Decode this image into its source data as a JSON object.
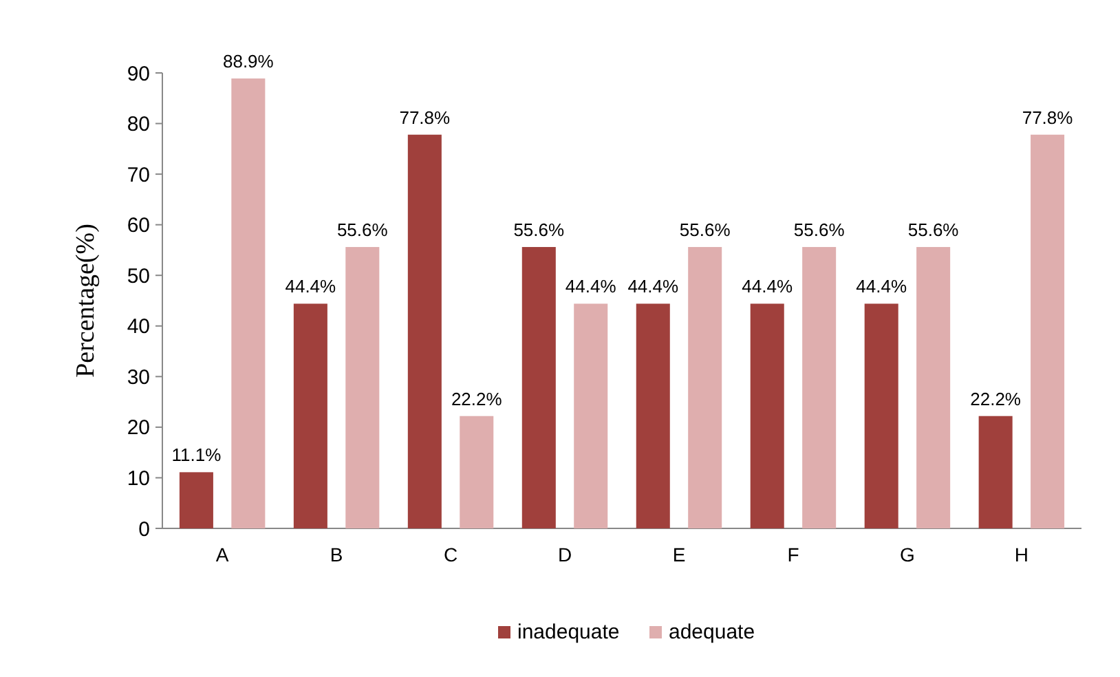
{
  "chart_data": {
    "type": "bar",
    "ylabel": "Percentage(%)",
    "categories": [
      "A",
      "B",
      "C",
      "D",
      "E",
      "F",
      "G",
      "H"
    ],
    "series": [
      {
        "name": "inadequate",
        "color": "#a0403c",
        "values": [
          11.1,
          44.4,
          77.8,
          55.6,
          44.4,
          44.4,
          44.4,
          22.2
        ],
        "value_labels": [
          "11.1%",
          "44.4%",
          "77.8%",
          "55.6%",
          "44.4%",
          "44.4%",
          "44.4%",
          "22.2%"
        ]
      },
      {
        "name": "adequate",
        "color": "#dfaeae",
        "values": [
          88.9,
          55.6,
          22.2,
          44.4,
          55.6,
          55.6,
          55.6,
          77.8
        ],
        "value_labels": [
          "88.9%",
          "55.6%",
          "22.2%",
          "44.4%",
          "55.6%",
          "55.6%",
          "55.6%",
          "77.8%"
        ]
      }
    ],
    "ylim": [
      0,
      90
    ],
    "yticks": [
      0,
      10,
      20,
      30,
      40,
      50,
      60,
      70,
      80,
      90
    ],
    "grid": false,
    "legend": "bottom"
  }
}
